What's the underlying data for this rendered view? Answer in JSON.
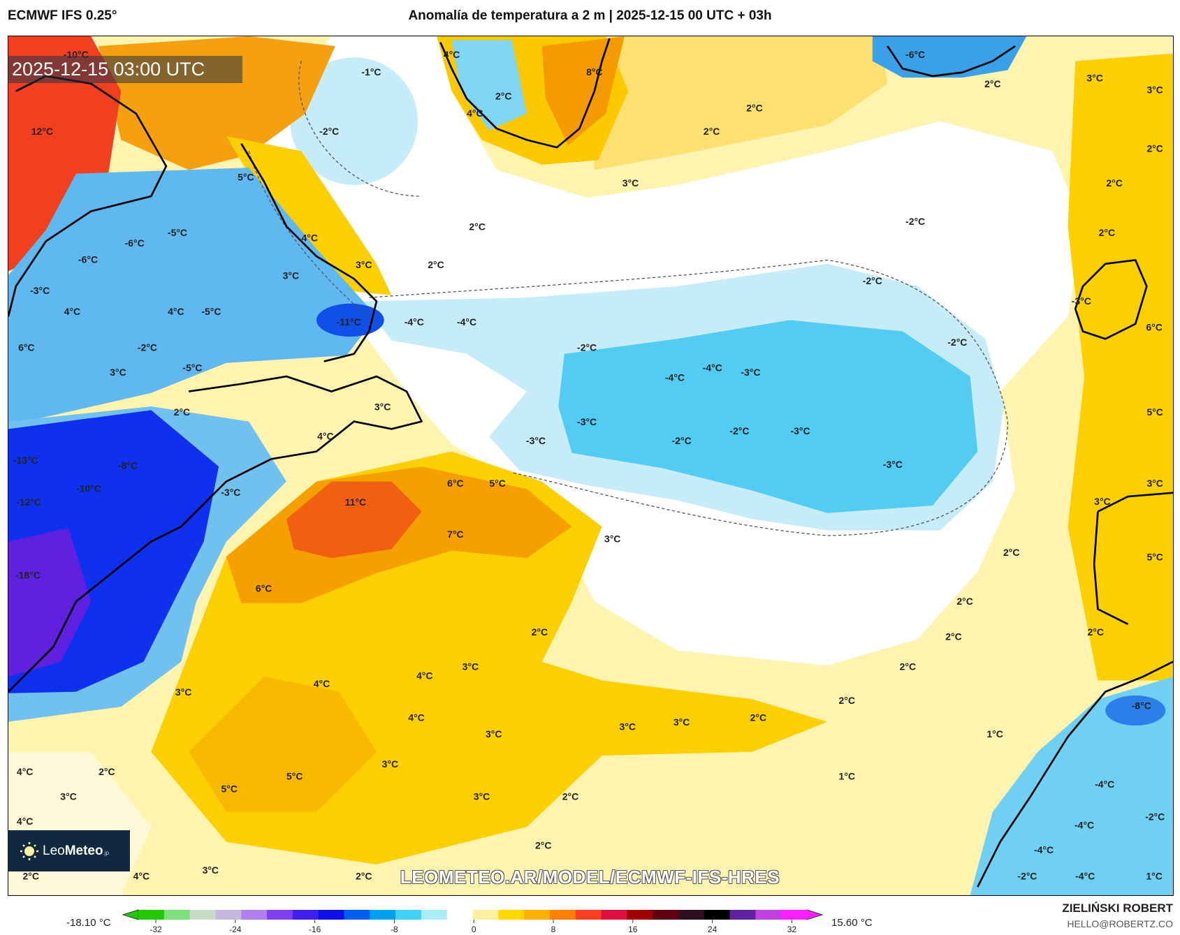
{
  "header": {
    "model": "ECMWF IFS 0.25°",
    "title": "Anomalía de temperatura a 2 m | 2025-12-15 00 UTC + 03h"
  },
  "map": {
    "valid_time": "2025-12-15 03:00 UTC",
    "watermark": "LEOMETEO.AR/MODEL/ECMWF-IFS-HRES",
    "logo": {
      "brand_light": "Leo",
      "brand_bold": "Meteo",
      "suffix": ".jp"
    },
    "contour_labels": [
      "-1°C",
      "-2°C",
      "2°C",
      "2°C",
      "3°C",
      "2°C",
      "2°C",
      "3°C",
      "4°C",
      "3°C",
      "5°C",
      "-6°C",
      "-5°C",
      "-6°C",
      "-3°C",
      "4°C",
      "4°C",
      "-5°C",
      "-11°C",
      "-4°C",
      "-4°C",
      "-2°C",
      "-5°C",
      "3°C",
      "6°C",
      "12°C",
      "2°C",
      "3°C",
      "4°C",
      "-13°C",
      "-8°C",
      "-10°C",
      "-12°C",
      "-3°C",
      "11°C",
      "6°C",
      "5°C",
      "7°C",
      "3°C",
      "6°C",
      "-18°C",
      "-2°C",
      "-2°C",
      "-2°C",
      "2°C",
      "3°C",
      "3°C",
      "2°C",
      "2°C",
      "2°C",
      "-2°C",
      "-4°C",
      "-3°C",
      "-4°C",
      "-3°C",
      "-3°C",
      "-2°C",
      "-2°C",
      "-3°C",
      "-3°C",
      "5°C",
      "3°C",
      "3°C",
      "5°C",
      "2°C",
      "2°C",
      "2°C",
      "2°C",
      "2°C",
      "2°C",
      "1°C",
      "1°C",
      "-8°C",
      "-4°C",
      "-4°C",
      "-4°C",
      "-2°C",
      "-4°C",
      "1°C",
      "-2°C",
      "2°C",
      "3°C",
      "4°C",
      "4°C",
      "3°C",
      "4°C",
      "3°C",
      "3°C",
      "3°C",
      "2°C",
      "3°C",
      "5°C",
      "5°C",
      "2°C",
      "4°C",
      "3°C",
      "4°C",
      "3°C",
      "2°C",
      "2°C",
      "2°C",
      "3°C",
      "4°C",
      "2°C",
      "8°C",
      "2°C",
      "4°C",
      "4°C",
      "-6°C",
      "-10°C",
      "-3°C",
      "6°C"
    ]
  },
  "colorbar": {
    "min_label": "-18.10 °C",
    "max_label": "15.60 °C",
    "ticks": [
      "-32",
      "-24",
      "-16",
      "-8",
      "0",
      "8",
      "16",
      "24",
      "32"
    ],
    "colors": [
      "#22c800",
      "#7ee07a",
      "#c8dcc8",
      "#c8b8e0",
      "#b080f0",
      "#8040f0",
      "#4020f0",
      "#1010e8",
      "#0060f0",
      "#00a0f0",
      "#40d0f8",
      "#a8ecf8",
      "#ffffff",
      "#fff0a0",
      "#ffd800",
      "#ffb000",
      "#ff8000",
      "#ff4020",
      "#e01040",
      "#a00000",
      "#600010",
      "#301020",
      "#000000",
      "#6020a0",
      "#c040e0",
      "#ff20ff"
    ]
  },
  "footer": {
    "author": "ZIELIŃSKI ROBERT",
    "email": "HELLO@ROBERTZ.CO"
  }
}
